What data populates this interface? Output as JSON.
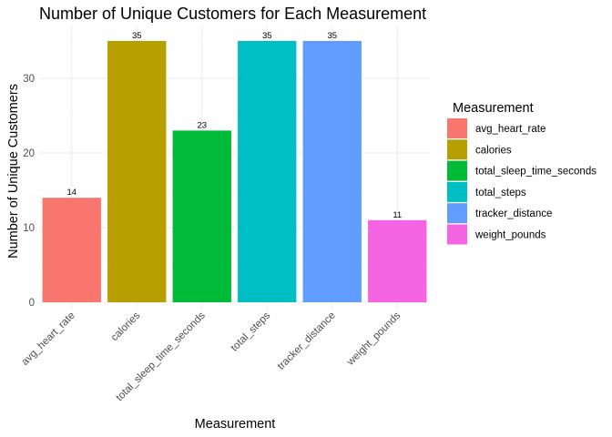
{
  "chart_data": {
    "type": "bar",
    "title": "Number of Unique Customers for Each Measurement",
    "xlabel": "Measurement",
    "ylabel": "Number of Unique Customers",
    "categories": [
      "avg_heart_rate",
      "calories",
      "total_sleep_time_seconds",
      "total_steps",
      "tracker_distance",
      "weight_pounds"
    ],
    "values": [
      14,
      35,
      23,
      35,
      35,
      11
    ],
    "colors": [
      "#F8766D",
      "#B79F00",
      "#00BA38",
      "#00BFC4",
      "#619CFF",
      "#F564E3"
    ],
    "y_ticks": [
      0,
      10,
      20,
      30
    ],
    "ylim": [
      0,
      36.5
    ],
    "grid": true,
    "legend": {
      "title": "Measurement",
      "placement": "right",
      "entries": [
        "avg_heart_rate",
        "calories",
        "total_sleep_time_seconds",
        "total_steps",
        "tracker_distance",
        "weight_pounds"
      ]
    }
  }
}
